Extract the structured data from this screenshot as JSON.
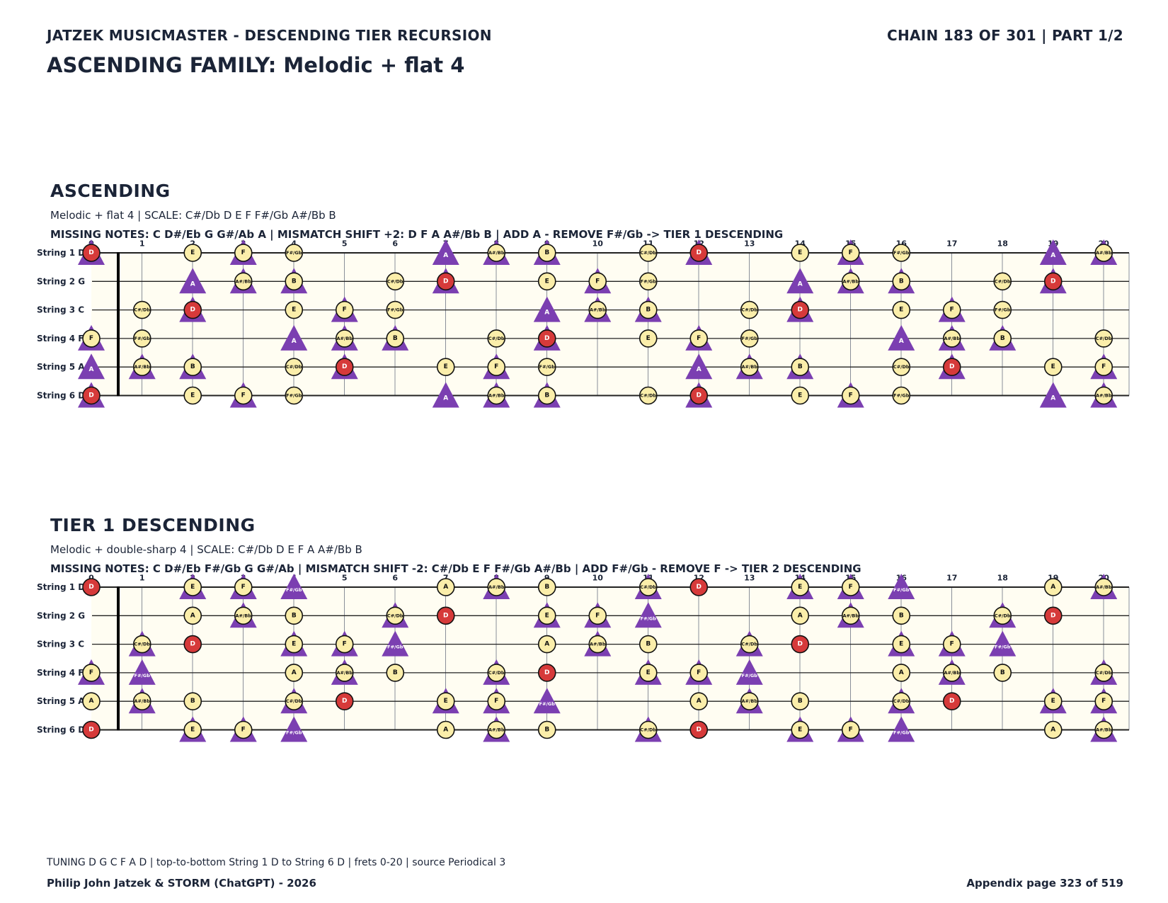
{
  "header": {
    "left": "JATZEK MUSICMASTER - DESCENDING TIER RECURSION",
    "right": "CHAIN 183 OF 301  |  PART 1/2",
    "family_title": "ASCENDING FAMILY: Melodic + flat 4"
  },
  "colors": {
    "ink": "#1b2437",
    "board_bg": "#fffdf2",
    "note_fill": "#fbeeaa",
    "root_fill": "#d63a3a",
    "triangle": "#7b3fb1"
  },
  "sections": [
    {
      "title": "ASCENDING",
      "subtitle": "Melodic + flat 4  |  SCALE: C#/Db D E F F#/Gb A#/Bb B",
      "missing": "MISSING NOTES: C D#/Eb G G#/Ab A  |  MISMATCH SHIFT +2: D F A A#/Bb B  |  ADD A - REMOVE F#/Gb -> TIER 1 DESCENDING",
      "circle_notes": [
        "C#/Db",
        "D",
        "E",
        "F",
        "F#/Gb",
        "A#/Bb",
        "B"
      ],
      "triangle_notes": [
        "D",
        "F",
        "A",
        "A#/Bb",
        "B"
      ],
      "root": "D"
    },
    {
      "title": "TIER 1 DESCENDING",
      "subtitle": "Melodic + double-sharp 4  |  SCALE: C#/Db D E F A A#/Bb B",
      "missing": "MISSING NOTES: C D#/Eb F#/Gb G G#/Ab  |  MISMATCH SHIFT -2: C#/Db E F F#/Gb A#/Bb  |  ADD F#/Gb - REMOVE F -> TIER 2 DESCENDING",
      "circle_notes": [
        "C#/Db",
        "D",
        "E",
        "F",
        "A",
        "A#/Bb",
        "B"
      ],
      "triangle_notes": [
        "C#/Db",
        "E",
        "F",
        "F#/Gb",
        "A#/Bb"
      ],
      "root": "D"
    }
  ],
  "fretboard": {
    "strings": [
      {
        "label": "String 1 D",
        "open": "D"
      },
      {
        "label": "String 2 G",
        "open": "G"
      },
      {
        "label": "String 3 C",
        "open": "C"
      },
      {
        "label": "String 4 F",
        "open": "F"
      },
      {
        "label": "String 5 A",
        "open": "A"
      },
      {
        "label": "String 6 D",
        "open": "D"
      }
    ],
    "frets": [
      "0",
      "1",
      "2",
      "3",
      "4",
      "5",
      "6",
      "7",
      "8",
      "9",
      "10",
      "11",
      "12",
      "13",
      "14",
      "15",
      "16",
      "17",
      "18",
      "19",
      "20"
    ]
  },
  "footer": {
    "tuning": "TUNING D G C F A D | top-to-bottom String 1 D to String 6 D | frets 0-20 | source Periodical 3",
    "credit": "Philip John Jatzek & STORM (ChatGPT) - 2026",
    "page": "Appendix page 323 of 519"
  }
}
